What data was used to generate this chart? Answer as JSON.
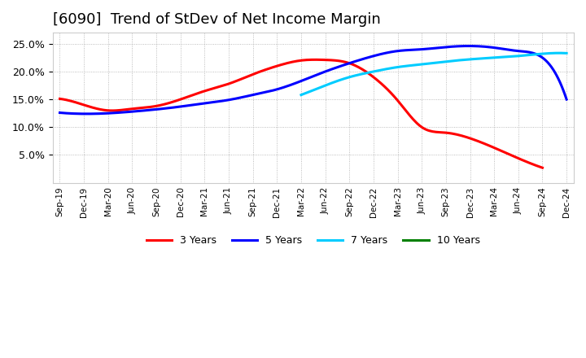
{
  "title": "[6090]  Trend of StDev of Net Income Margin",
  "title_fontsize": 13,
  "background_color": "#ffffff",
  "plot_bg_color": "#ffffff",
  "grid_color": "#aaaaaa",
  "ylim": [
    0.0,
    0.27
  ],
  "yticks": [
    0.05,
    0.1,
    0.15,
    0.2,
    0.25
  ],
  "x_labels": [
    "Sep-19",
    "Dec-19",
    "Mar-20",
    "Jun-20",
    "Sep-20",
    "Dec-20",
    "Mar-21",
    "Jun-21",
    "Sep-21",
    "Dec-21",
    "Mar-22",
    "Jun-22",
    "Sep-22",
    "Dec-22",
    "Mar-23",
    "Jun-23",
    "Sep-23",
    "Dec-23",
    "Mar-24",
    "Jun-24",
    "Sep-24",
    "Dec-24"
  ],
  "series": [
    {
      "label": "3 Years",
      "color": "#ff0000",
      "data_x": [
        0,
        1,
        2,
        3,
        4,
        5,
        6,
        7,
        8,
        9,
        10,
        11,
        12,
        13,
        14,
        15,
        16,
        17,
        18,
        19,
        20
      ],
      "data_y": [
        0.151,
        0.14,
        0.13,
        0.133,
        0.138,
        0.15,
        0.165,
        0.178,
        0.195,
        0.21,
        0.22,
        0.221,
        0.215,
        0.19,
        0.148,
        0.1,
        0.09,
        0.08,
        0.063,
        0.044,
        0.027
      ]
    },
    {
      "label": "5 Years",
      "color": "#0000ff",
      "data_x": [
        0,
        1,
        2,
        3,
        4,
        5,
        6,
        7,
        8,
        9,
        10,
        11,
        12,
        13,
        14,
        15,
        16,
        17,
        18,
        19,
        20,
        21
      ],
      "data_y": [
        0.126,
        0.124,
        0.125,
        0.128,
        0.132,
        0.137,
        0.143,
        0.149,
        0.158,
        0.168,
        0.183,
        0.2,
        0.215,
        0.228,
        0.237,
        0.24,
        0.244,
        0.246,
        0.243,
        0.237,
        0.225,
        0.15
      ]
    },
    {
      "label": "7 Years",
      "color": "#00ccff",
      "data_x": [
        10,
        11,
        12,
        13,
        14,
        15,
        16,
        17,
        18,
        19,
        20,
        21
      ],
      "data_y": [
        0.158,
        0.175,
        0.19,
        0.2,
        0.208,
        0.213,
        0.218,
        0.222,
        0.225,
        0.228,
        0.232,
        0.233
      ]
    },
    {
      "label": "10 Years",
      "color": "#008000",
      "data_x": [],
      "data_y": []
    }
  ],
  "legend_loc": "lower center",
  "line_width": 2.2,
  "smooth_points": 300
}
